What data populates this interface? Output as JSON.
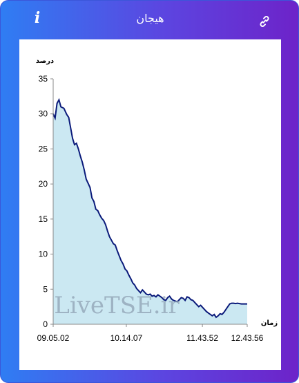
{
  "header": {
    "title": "هیجان",
    "info_icon": "info-icon",
    "link_icon": "link-icon"
  },
  "colors": {
    "gradient_start": "#2f7df3",
    "gradient_end": "#6d23c9",
    "line": "#0a1a7a",
    "area": "#cbe8f2"
  },
  "watermark": "LiveTSE.ir",
  "chart_data": {
    "type": "area",
    "ylabel": "درصد",
    "xlabel": "زمان",
    "ylim": [
      0,
      35
    ],
    "y_ticks": [
      0,
      5,
      10,
      15,
      20,
      25,
      30,
      35
    ],
    "x_ticks": [
      "09.05.02",
      "10.14.07",
      "11.43.52",
      "12.43.56"
    ],
    "x_tick_positions": [
      0,
      0.377,
      0.769,
      1.0
    ],
    "series": [
      {
        "x": [
          0,
          0.01,
          0.02,
          0.03,
          0.04,
          0.055,
          0.07,
          0.08,
          0.09,
          0.1,
          0.11,
          0.12,
          0.13,
          0.14,
          0.15,
          0.16,
          0.17,
          0.18,
          0.19,
          0.2,
          0.21,
          0.22,
          0.23,
          0.24,
          0.25,
          0.26,
          0.27,
          0.28,
          0.29,
          0.3,
          0.31,
          0.32,
          0.33,
          0.34,
          0.35,
          0.36,
          0.37,
          0.38,
          0.39,
          0.4,
          0.41,
          0.42,
          0.43,
          0.44,
          0.45,
          0.46,
          0.47,
          0.48,
          0.49,
          0.5,
          0.51,
          0.52,
          0.53,
          0.54,
          0.55,
          0.56,
          0.57,
          0.58,
          0.59,
          0.6,
          0.61,
          0.62,
          0.63,
          0.64,
          0.65,
          0.66,
          0.67,
          0.68,
          0.69,
          0.7,
          0.71,
          0.72,
          0.73,
          0.74,
          0.75,
          0.76,
          0.77,
          0.78,
          0.79,
          0.8,
          0.81,
          0.82,
          0.83,
          0.84,
          0.85,
          0.86,
          0.87,
          0.88,
          0.89,
          0.9,
          0.91,
          0.92,
          0.93,
          0.94,
          0.95,
          0.97,
          1.0
        ],
        "y": [
          30.0,
          29.4,
          31.5,
          32.0,
          31.0,
          30.8,
          29.9,
          29.5,
          28.0,
          26.5,
          25.6,
          25.8,
          25.0,
          24.0,
          23.1,
          22.0,
          20.7,
          20.1,
          19.5,
          18.0,
          17.5,
          16.4,
          16.2,
          15.6,
          15.1,
          14.8,
          14.2,
          13.3,
          12.5,
          12.0,
          11.5,
          11.3,
          10.5,
          9.8,
          9.1,
          8.6,
          7.9,
          7.6,
          7.0,
          6.5,
          5.9,
          5.6,
          5.1,
          4.8,
          4.5,
          4.9,
          4.6,
          4.3,
          4.2,
          4.3,
          4.0,
          4.1,
          3.9,
          4.2,
          4.0,
          3.8,
          3.5,
          3.4,
          3.8,
          4.0,
          3.6,
          3.4,
          3.3,
          3.2,
          3.5,
          3.8,
          3.7,
          3.4,
          3.9,
          3.8,
          3.5,
          3.4,
          3.1,
          2.8,
          2.5,
          2.7,
          2.4,
          2.1,
          1.8,
          1.6,
          1.4,
          1.2,
          1.4,
          1.0,
          1.2,
          1.5,
          1.4,
          1.7,
          2.1,
          2.5,
          2.9,
          3.0,
          3.0,
          2.95,
          3.0,
          2.9,
          2.9
        ]
      }
    ]
  }
}
